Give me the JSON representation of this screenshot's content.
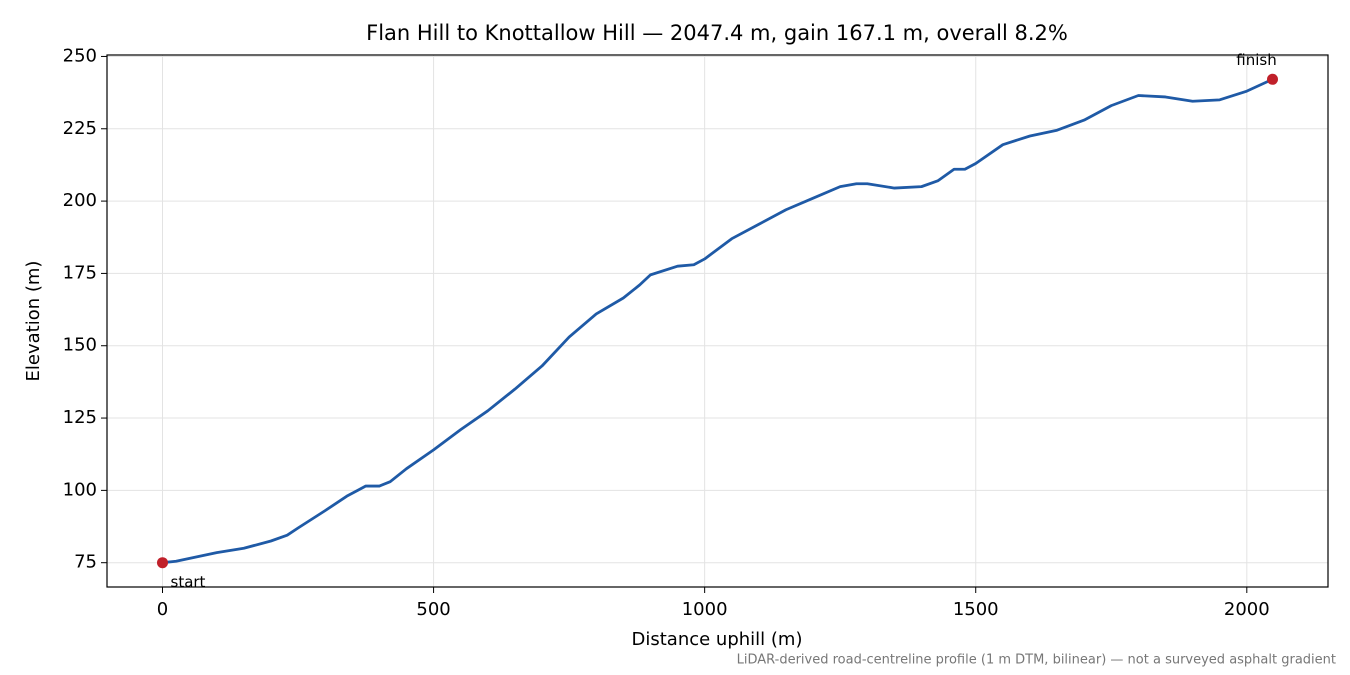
{
  "chart_data": {
    "type": "line",
    "title": "Flan Hill to Knottallow Hill — 2047.4 m, gain 167.1 m, overall 8.2%",
    "xlabel": "Distance uphill (m)",
    "ylabel": "Elevation (m)",
    "footnote": "LiDAR-derived road-centreline profile (1 m DTM, bilinear) — not a surveyed asphalt gradient",
    "annotations": {
      "start": "start",
      "finish": "finish"
    },
    "marker_color": "#c0202a",
    "x": [
      0,
      25,
      50,
      100,
      150,
      200,
      230,
      250,
      300,
      340,
      360,
      375,
      400,
      420,
      450,
      500,
      550,
      600,
      650,
      700,
      750,
      800,
      850,
      880,
      900,
      950,
      980,
      1000,
      1050,
      1100,
      1150,
      1200,
      1250,
      1280,
      1300,
      1350,
      1400,
      1430,
      1460,
      1480,
      1500,
      1550,
      1600,
      1650,
      1700,
      1750,
      1800,
      1850,
      1900,
      1950,
      2000,
      2047.4
    ],
    "series": [
      {
        "name": "Elevation",
        "color": "#1f5aa6",
        "values": [
          75,
          75.5,
          76.5,
          78.5,
          80,
          82.5,
          84.5,
          87,
          93,
          98,
          100,
          101.5,
          101.5,
          103,
          107.5,
          114,
          121,
          127.5,
          135,
          143,
          153,
          161,
          166.5,
          171,
          174.5,
          177.5,
          178,
          180,
          187,
          192,
          197,
          201,
          205,
          206,
          206,
          204.5,
          205,
          207,
          211,
          211,
          213,
          219.5,
          222.5,
          224.5,
          228,
          233,
          236.5,
          236,
          234.5,
          235,
          238,
          242.1
        ]
      }
    ],
    "xlim": [
      -102.37,
      2149.77
    ],
    "xticks": [
      0,
      500,
      1000,
      1500,
      2000
    ],
    "ylim": [
      66.6,
      250.5
    ],
    "yticks": [
      75,
      100,
      125,
      150,
      175,
      200,
      225,
      250
    ],
    "grid": true
  }
}
